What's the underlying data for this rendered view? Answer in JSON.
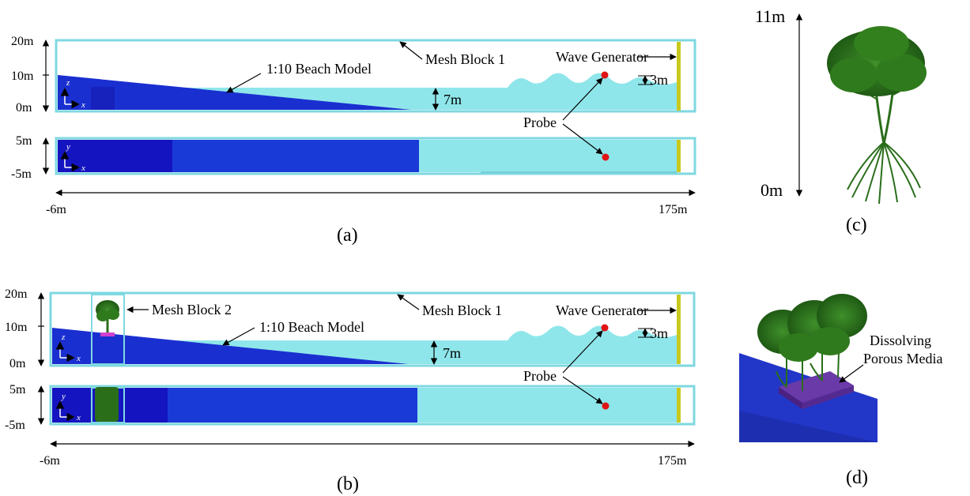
{
  "colors": {
    "water": "#8fe6ea",
    "beach": "#1a2fd0",
    "beach_dark": "#1414a8",
    "frame": "#7fd8e0",
    "generator": "#c8c81e",
    "probe": "#e01414",
    "tree": "#2a6e1a",
    "porous": "#6a3aa8"
  },
  "panel_a": {
    "caption": "(a)",
    "z_ticks": [
      "20m",
      "10m",
      "0m"
    ],
    "y_ticks": [
      "5m",
      "-5m"
    ],
    "x_start": "-6m",
    "x_end": "175m",
    "mesh_block_1": "Mesh Block 1",
    "beach_model": "1:10 Beach Model",
    "wave_generator": "Wave Generator",
    "depth": "7m",
    "wave_height": "3m",
    "probe": "Probe",
    "axis_z": "z",
    "axis_y": "y",
    "axis_x": "x"
  },
  "panel_b": {
    "caption": "(b)",
    "z_ticks": [
      "20m",
      "10m",
      "0m"
    ],
    "y_ticks": [
      "5m",
      "-5m"
    ],
    "x_start": "-6m",
    "x_end": "175m",
    "mesh_block_1": "Mesh Block 1",
    "mesh_block_2": "Mesh Block 2",
    "beach_model": "1:10 Beach Model",
    "wave_generator": "Wave Generator",
    "depth": "7m",
    "wave_height": "3m",
    "probe": "Probe",
    "axis_z": "z",
    "axis_y": "y",
    "axis_x": "x"
  },
  "panel_c": {
    "caption": "(c)",
    "top": "11m",
    "bottom": "0m"
  },
  "panel_d": {
    "caption": "(d)",
    "label_line1": "Dissolving",
    "label_line2": "Porous Media"
  }
}
